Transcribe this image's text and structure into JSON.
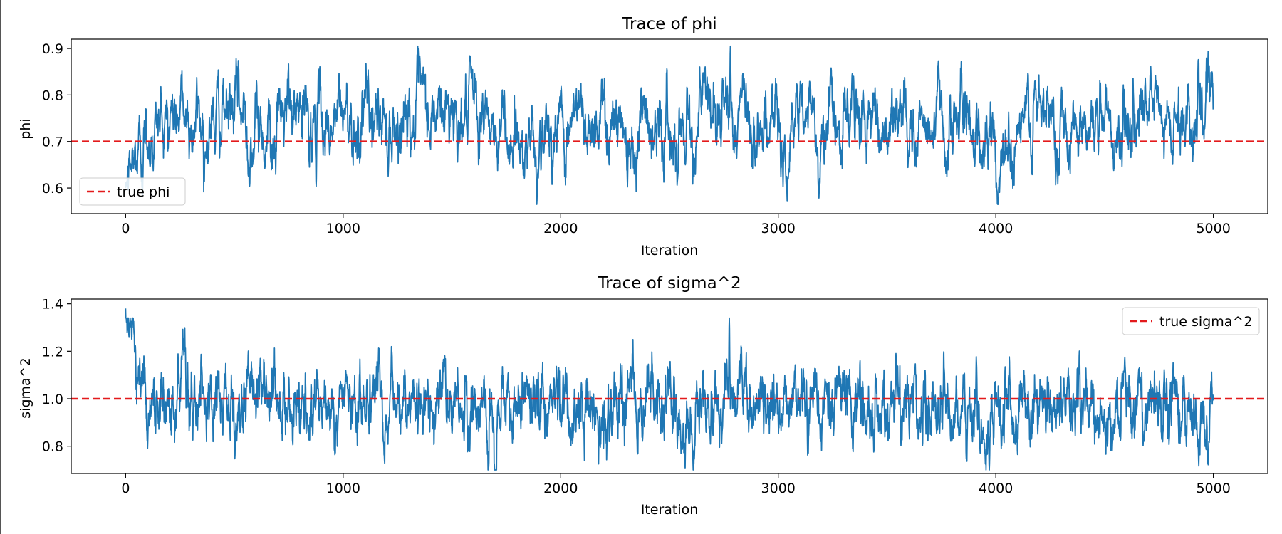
{
  "colors": {
    "trace": "#1f77b4",
    "reference": "#e31a1c",
    "axes": "#000000",
    "background": "#ffffff"
  },
  "chart_data": [
    {
      "type": "line",
      "title": "Trace of phi",
      "xlabel": "Iteration",
      "ylabel": "phi",
      "xlim": [
        -250,
        5250
      ],
      "ylim": [
        0.545,
        0.92
      ],
      "xticks": [
        0,
        1000,
        2000,
        3000,
        4000,
        5000
      ],
      "xtick_labels": [
        "0",
        "1000",
        "2000",
        "3000",
        "4000",
        "5000"
      ],
      "yticks": [
        0.6,
        0.7,
        0.8,
        0.9
      ],
      "ytick_labels": [
        "0.6",
        "0.7",
        "0.8",
        "0.9"
      ],
      "grid": false,
      "legend_position": "lower-left",
      "series": {
        "name": "",
        "iterations": 5000,
        "start_value": 0.6,
        "stationary_mean": 0.745,
        "stationary_sd": 0.048,
        "autocorrelation": 0.9,
        "min_value": 0.565,
        "max_value": 0.905,
        "min_at": 1890,
        "max_at": 2780,
        "values_every_100": [
          0.6,
          0.72,
          0.76,
          0.75,
          0.74,
          0.76,
          0.73,
          0.74,
          0.75,
          0.73,
          0.76,
          0.75,
          0.74,
          0.77,
          0.73,
          0.78,
          0.74,
          0.73,
          0.72,
          0.7,
          0.73,
          0.75,
          0.76,
          0.74,
          0.75,
          0.72,
          0.77,
          0.76,
          0.75,
          0.74,
          0.72,
          0.74,
          0.73,
          0.75,
          0.76,
          0.74,
          0.74,
          0.73,
          0.75,
          0.74,
          0.68,
          0.73,
          0.74,
          0.75,
          0.76,
          0.73,
          0.74,
          0.75,
          0.72,
          0.77
        ]
      },
      "reference_line": {
        "label": "true phi",
        "value": 0.7
      }
    },
    {
      "type": "line",
      "title": "Trace of sigma^2",
      "xlabel": "Iteration",
      "ylabel": "sigma^2",
      "xlim": [
        -250,
        5250
      ],
      "ylim": [
        0.685,
        1.42
      ],
      "xticks": [
        0,
        1000,
        2000,
        3000,
        4000,
        5000
      ],
      "xtick_labels": [
        "0",
        "1000",
        "2000",
        "3000",
        "4000",
        "5000"
      ],
      "yticks": [
        0.8,
        1.0,
        1.2,
        1.4
      ],
      "ytick_labels": [
        "0.8",
        "1.0",
        "1.2",
        "1.4"
      ],
      "grid": false,
      "legend_position": "upper-right",
      "series": {
        "name": "",
        "iterations": 5000,
        "start_value": 1.38,
        "stationary_mean": 0.97,
        "stationary_sd": 0.085,
        "autocorrelation": 0.85,
        "min_value": 0.7,
        "max_value": 1.34,
        "min_at": 3970,
        "max_at": 2775,
        "values_every_100": [
          1.38,
          0.95,
          0.98,
          0.97,
          0.96,
          0.95,
          0.99,
          0.96,
          0.97,
          0.98,
          0.97,
          0.96,
          0.99,
          0.95,
          0.96,
          0.98,
          0.97,
          0.94,
          0.96,
          0.99,
          0.97,
          0.93,
          0.96,
          0.98,
          0.97,
          0.99,
          0.94,
          0.97,
          1.02,
          0.98,
          0.96,
          0.97,
          0.95,
          0.98,
          0.99,
          0.96,
          0.97,
          0.98,
          0.96,
          0.93,
          0.97,
          0.98,
          0.96,
          1.0,
          0.97,
          0.95,
          0.97,
          0.96,
          0.98,
          0.93
        ]
      },
      "reference_line": {
        "label": "true sigma^2",
        "value": 1.0
      }
    }
  ]
}
